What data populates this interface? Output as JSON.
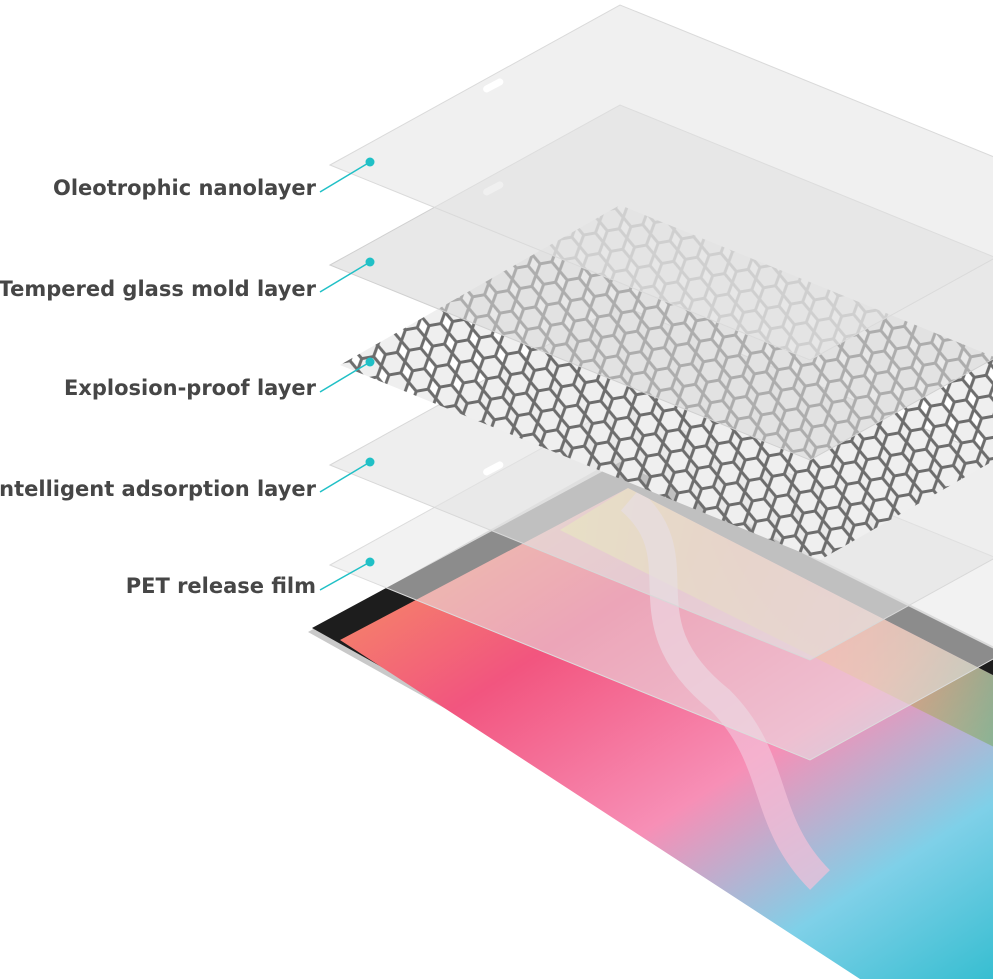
{
  "labels": [
    "Oleotrophic nanolayer",
    "Tempered glass mold layer",
    "Explosion-proof layer",
    "Intelligent adsorption layer",
    "PET release film"
  ]
}
